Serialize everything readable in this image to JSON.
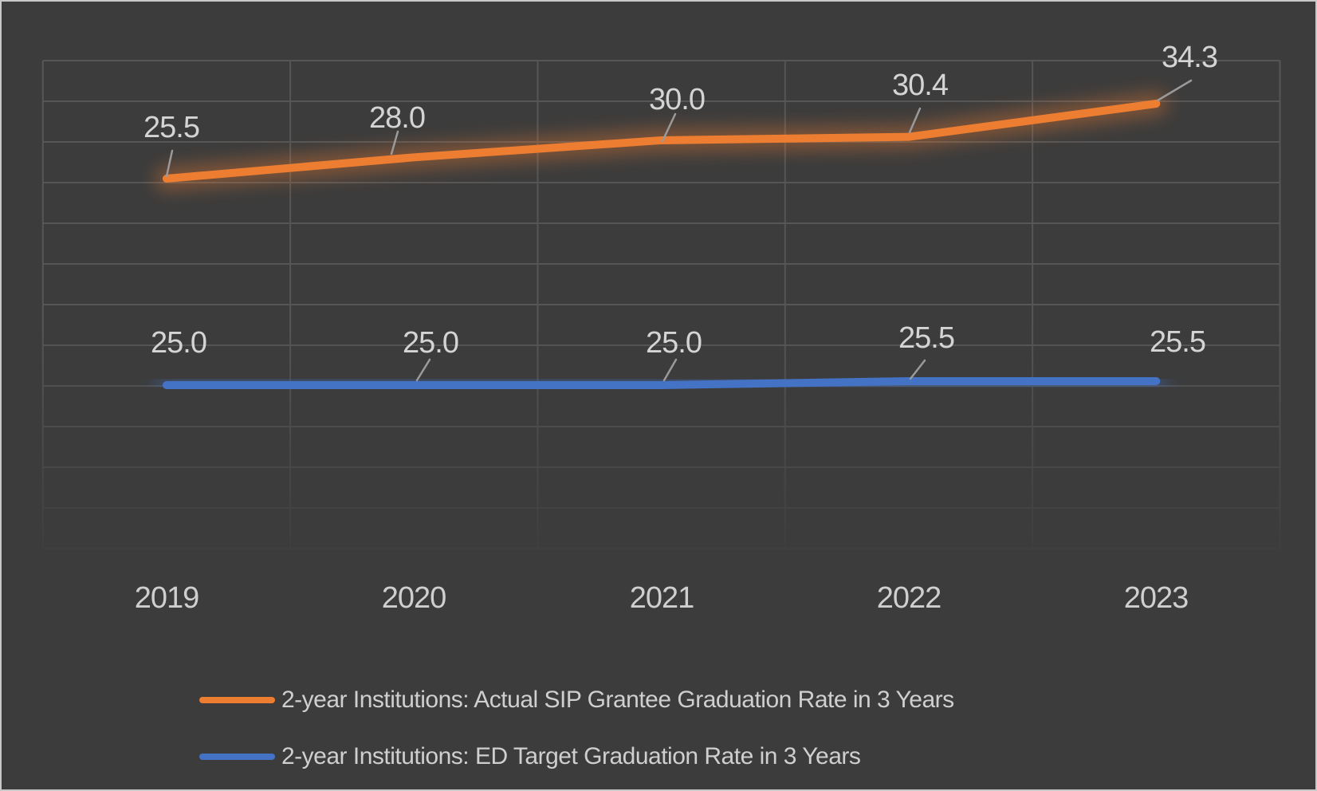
{
  "chart_data": {
    "type": "line",
    "categories": [
      "2019",
      "2020",
      "2021",
      "2022",
      "2023"
    ],
    "series": [
      {
        "name": "2-year Institutions: Actual SIP Grantee Graduation Rate in 3 Years",
        "color": "#ED7D31",
        "values": [
          25.5,
          28.0,
          30.0,
          30.4,
          34.3
        ],
        "data_labels": [
          "25.5",
          "28.0",
          "30.0",
          "30.4",
          "34.3"
        ]
      },
      {
        "name": "2-year Institutions: ED Target Graduation Rate in 3 Years",
        "color": "#4472C4",
        "values": [
          25.0,
          25.0,
          25.0,
          25.5,
          25.5
        ],
        "data_labels": [
          "25.0",
          "25.0",
          "25.0",
          "25.5",
          "25.5"
        ]
      }
    ],
    "title": "",
    "xlabel": "",
    "ylabel": "",
    "y_axis_visible": false,
    "grid": true,
    "legend_position": "bottom"
  },
  "colors": {
    "background": "#3C3C3C",
    "gridline": "#565656",
    "label_text": "#D4D4D4",
    "leader_line": "#9A9A9A",
    "frame_border": "#C8C8C8",
    "series_actual": "#ED7D31",
    "series_target": "#4472C4"
  }
}
